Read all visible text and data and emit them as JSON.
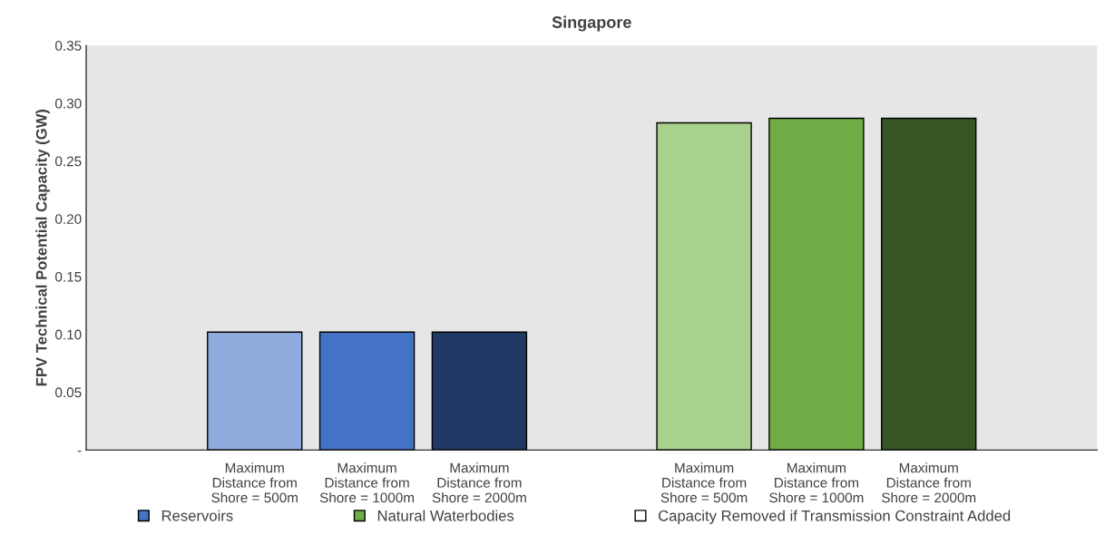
{
  "chart_data": {
    "type": "bar",
    "title": "Singapore",
    "ylabel": "FPV Technical Potential Capacity (GW)",
    "categories": [
      null,
      "Maximum\nDistance from\nShore = 500m",
      "Maximum\nDistance from\nShore = 1000m",
      "Maximum\nDistance from\nShore = 2000m",
      null,
      "Maximum\nDistance from\nShore = 500m",
      "Maximum\nDistance from\nShore = 1000m",
      "Maximum\nDistance from\nShore = 2000m",
      null
    ],
    "series": [
      {
        "name": "Reservoirs",
        "color": "#4472c4",
        "colors": [
          null,
          "#8faadc",
          "#4472c4",
          "#203864",
          null,
          null,
          null,
          null,
          null
        ],
        "values": [
          null,
          0.102,
          0.102,
          0.102,
          null,
          null,
          null,
          null,
          null
        ]
      },
      {
        "name": "Natural Waterbodies",
        "color": "#70ad47",
        "colors": [
          null,
          null,
          null,
          null,
          null,
          "#a9d18e",
          "#70ad47",
          "#375623",
          null
        ],
        "values": [
          null,
          null,
          null,
          null,
          null,
          0.283,
          0.287,
          0.287,
          null
        ]
      },
      {
        "name": "Capacity Removed if Transmission Constraint Added",
        "color": "#ffffff",
        "values": [
          null,
          null,
          null,
          null,
          null,
          null,
          null,
          null,
          null
        ]
      }
    ],
    "ylim": [
      0,
      0.35
    ],
    "yticks": [
      {
        "value": 0,
        "label": "-"
      },
      0.05,
      {
        "value": 0.1,
        "label": "0.10"
      },
      0.15,
      {
        "value": 0.2,
        "label": "0.20"
      },
      0.25,
      {
        "value": 0.3,
        "label": "0.30"
      },
      0.35
    ],
    "grid": false,
    "legend": "bottom"
  }
}
